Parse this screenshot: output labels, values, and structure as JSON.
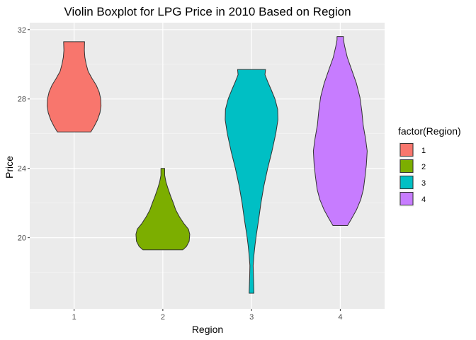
{
  "chart_data": {
    "type": "violin",
    "title": "Violin Boxplot for LPG Price in 2010 Based on Region",
    "xlabel": "Region",
    "ylabel": "Price",
    "categories": [
      "1",
      "2",
      "3",
      "4"
    ],
    "ylim": [
      15.9,
      32.4
    ],
    "yticks": [
      20,
      24,
      28,
      32
    ],
    "grid": true,
    "legend": {
      "title": "factor(Region)",
      "placement": "right",
      "entries": [
        "1",
        "2",
        "3",
        "4"
      ]
    },
    "series": [
      {
        "category": "1",
        "color": "#F8766D",
        "range": [
          26.1,
          31.3
        ],
        "density": [
          [
            26.1,
            0.62
          ],
          [
            26.4,
            0.74
          ],
          [
            26.8,
            0.87
          ],
          [
            27.2,
            0.96
          ],
          [
            27.6,
            1.0
          ],
          [
            28.0,
            0.99
          ],
          [
            28.4,
            0.93
          ],
          [
            28.8,
            0.82
          ],
          [
            29.2,
            0.66
          ],
          [
            29.6,
            0.52
          ],
          [
            30.0,
            0.45
          ],
          [
            30.4,
            0.4
          ],
          [
            30.8,
            0.38
          ],
          [
            31.3,
            0.39
          ]
        ]
      },
      {
        "category": "2",
        "color": "#7CAE00",
        "range": [
          19.3,
          24.0
        ],
        "density": [
          [
            19.3,
            0.74
          ],
          [
            19.5,
            0.88
          ],
          [
            19.8,
            0.98
          ],
          [
            20.2,
            1.0
          ],
          [
            20.5,
            0.95
          ],
          [
            20.8,
            0.79
          ],
          [
            21.2,
            0.62
          ],
          [
            21.6,
            0.48
          ],
          [
            22.0,
            0.39
          ],
          [
            22.4,
            0.29
          ],
          [
            22.8,
            0.2
          ],
          [
            23.2,
            0.12
          ],
          [
            23.6,
            0.07
          ],
          [
            24.0,
            0.07
          ]
        ]
      },
      {
        "category": "3",
        "color": "#00BFC4",
        "range": [
          16.8,
          29.7
        ],
        "density": [
          [
            16.8,
            0.09
          ],
          [
            17.3,
            0.08
          ],
          [
            17.8,
            0.07
          ],
          [
            18.4,
            0.06
          ],
          [
            19.0,
            0.09
          ],
          [
            19.6,
            0.13
          ],
          [
            20.2,
            0.18
          ],
          [
            21.0,
            0.26
          ],
          [
            22.0,
            0.35
          ],
          [
            23.0,
            0.46
          ],
          [
            24.0,
            0.6
          ],
          [
            25.0,
            0.76
          ],
          [
            26.0,
            0.9
          ],
          [
            26.8,
            0.98
          ],
          [
            27.4,
            0.97
          ],
          [
            28.0,
            0.87
          ],
          [
            28.5,
            0.74
          ],
          [
            29.0,
            0.6
          ],
          [
            29.4,
            0.5
          ],
          [
            29.7,
            0.52
          ]
        ]
      },
      {
        "category": "4",
        "color": "#C77CFF",
        "range": [
          20.7,
          31.6
        ],
        "density": [
          [
            20.7,
            0.27
          ],
          [
            21.1,
            0.42
          ],
          [
            21.6,
            0.6
          ],
          [
            22.2,
            0.76
          ],
          [
            22.8,
            0.86
          ],
          [
            23.5,
            0.92
          ],
          [
            24.2,
            0.97
          ],
          [
            25.0,
            1.0
          ],
          [
            25.7,
            0.94
          ],
          [
            26.5,
            0.85
          ],
          [
            27.3,
            0.8
          ],
          [
            28.1,
            0.73
          ],
          [
            28.9,
            0.6
          ],
          [
            29.7,
            0.42
          ],
          [
            30.4,
            0.26
          ],
          [
            31.0,
            0.17
          ],
          [
            31.4,
            0.12
          ],
          [
            31.6,
            0.12
          ]
        ]
      }
    ]
  }
}
